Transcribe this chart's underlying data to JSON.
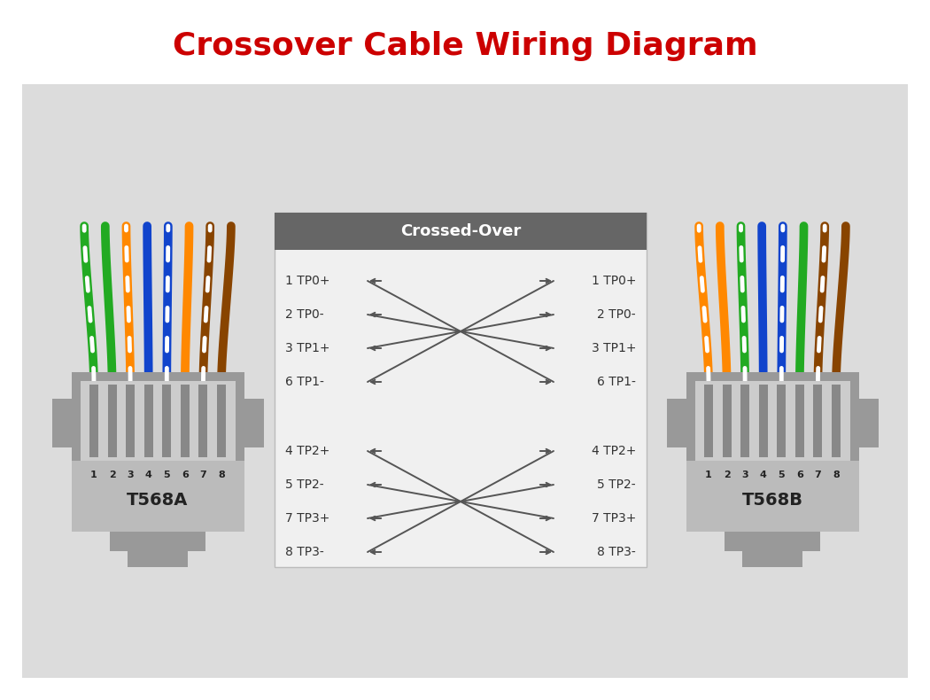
{
  "title": "Crossover Cable Wiring Diagram",
  "title_color": "#cc0000",
  "title_fontsize": 26,
  "bg_color": "#dcdcdc",
  "white_bg": "#ffffff",
  "header_bg": "#666666",
  "header_text": "Crossed-Over",
  "left_label": "T568A",
  "right_label": "T568B",
  "left_rows_top": [
    "1 TP0+",
    "2 TP0-",
    "3 TP1+",
    "6 TP1-"
  ],
  "left_rows_bot": [
    "4 TP2+",
    "5 TP2-",
    "7 TP3+",
    "8 TP3-"
  ],
  "right_rows_top": [
    "1 TP0+",
    "2 TP0-",
    "3 TP1+",
    "6 TP1-"
  ],
  "right_rows_bot": [
    "4 TP2+",
    "5 TP2-",
    "7 TP3+",
    "8 TP3-"
  ],
  "wires_568A": [
    [
      "#22aa22",
      "#ffffff"
    ],
    [
      "#22aa22",
      null
    ],
    [
      "#ff8800",
      "#ffffff"
    ],
    [
      "#1144cc",
      null
    ],
    [
      "#1144cc",
      "#ffffff"
    ],
    [
      "#ff8800",
      null
    ],
    [
      "#884400",
      "#ffffff"
    ],
    [
      "#884400",
      null
    ]
  ],
  "wires_568B": [
    [
      "#ff8800",
      "#ffffff"
    ],
    [
      "#ff8800",
      null
    ],
    [
      "#22aa22",
      "#ffffff"
    ],
    [
      "#1144cc",
      null
    ],
    [
      "#1144cc",
      "#ffffff"
    ],
    [
      "#22aa22",
      null
    ],
    [
      "#884400",
      "#ffffff"
    ],
    [
      "#884400",
      null
    ]
  ],
  "cross_color": "#555555",
  "label_color": "#333333",
  "connector_gray": "#999999",
  "connector_light": "#cccccc",
  "connector_mid": "#aaaaaa",
  "pin_dark": "#666666"
}
